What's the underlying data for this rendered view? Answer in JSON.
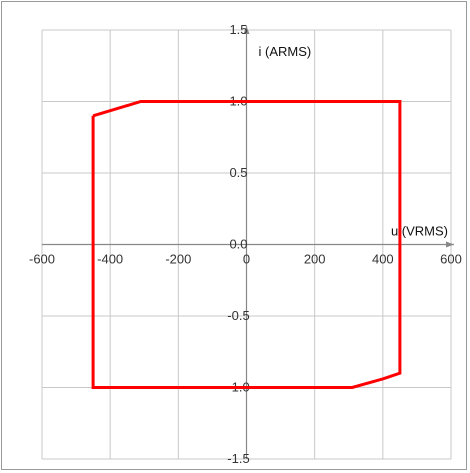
{
  "chart_data": {
    "type": "line",
    "xlabel": "u (VRMS)",
    "ylabel": "i (ARMS)",
    "xlim": [
      -600,
      600
    ],
    "ylim": [
      -1.5,
      1.5
    ],
    "x_ticks": [
      "-600",
      "-400",
      "-200",
      "0",
      "200",
      "400",
      "600"
    ],
    "y_ticks": [
      "1.5",
      "1.0",
      "0.5",
      "0.0",
      "-0.5",
      "-1.0",
      "-1.5"
    ],
    "grid": true,
    "legend": "none",
    "series": [
      {
        "color": "#ff0000",
        "points": [
          {
            "x": -450,
            "y": 0.9
          },
          {
            "x": -310,
            "y": 1.0
          },
          {
            "x": 450,
            "y": 1.0
          },
          {
            "x": 450,
            "y": -0.9
          },
          {
            "x": 400,
            "y": -0.94
          },
          {
            "x": 310,
            "y": -1.0
          },
          {
            "x": -450,
            "y": -1.0
          },
          {
            "x": -450,
            "y": 0.9
          }
        ]
      }
    ]
  }
}
